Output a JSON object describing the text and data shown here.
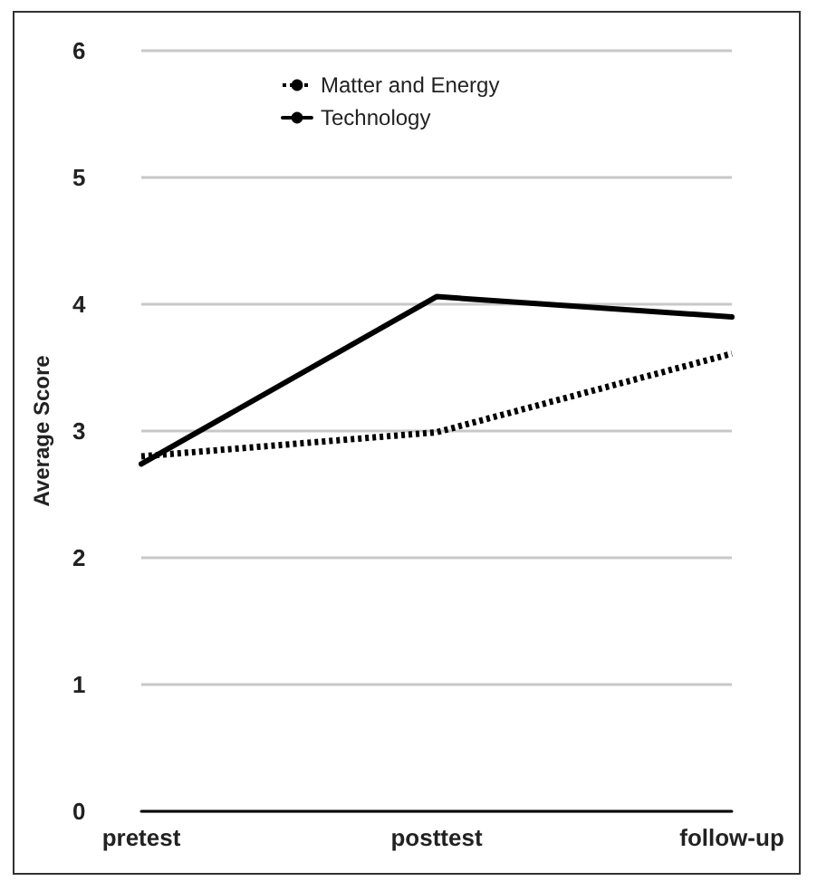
{
  "chart_data": {
    "type": "line",
    "ylabel": "Average Score",
    "categories": [
      "pretest",
      "posttest",
      "follow-up"
    ],
    "series": [
      {
        "name": "Matter and Energy",
        "color": "#000000",
        "line_style": "dotted",
        "values": [
          2.8,
          2.99,
          3.61
        ]
      },
      {
        "name": "Technology",
        "color": "#000000",
        "line_style": "solid",
        "values": [
          2.74,
          4.06,
          3.9
        ]
      }
    ],
    "ylim": [
      0,
      6
    ],
    "yticks": [
      0,
      1,
      2,
      3,
      4,
      5,
      6
    ],
    "grid": "y",
    "legend": "top",
    "marker": "none"
  }
}
